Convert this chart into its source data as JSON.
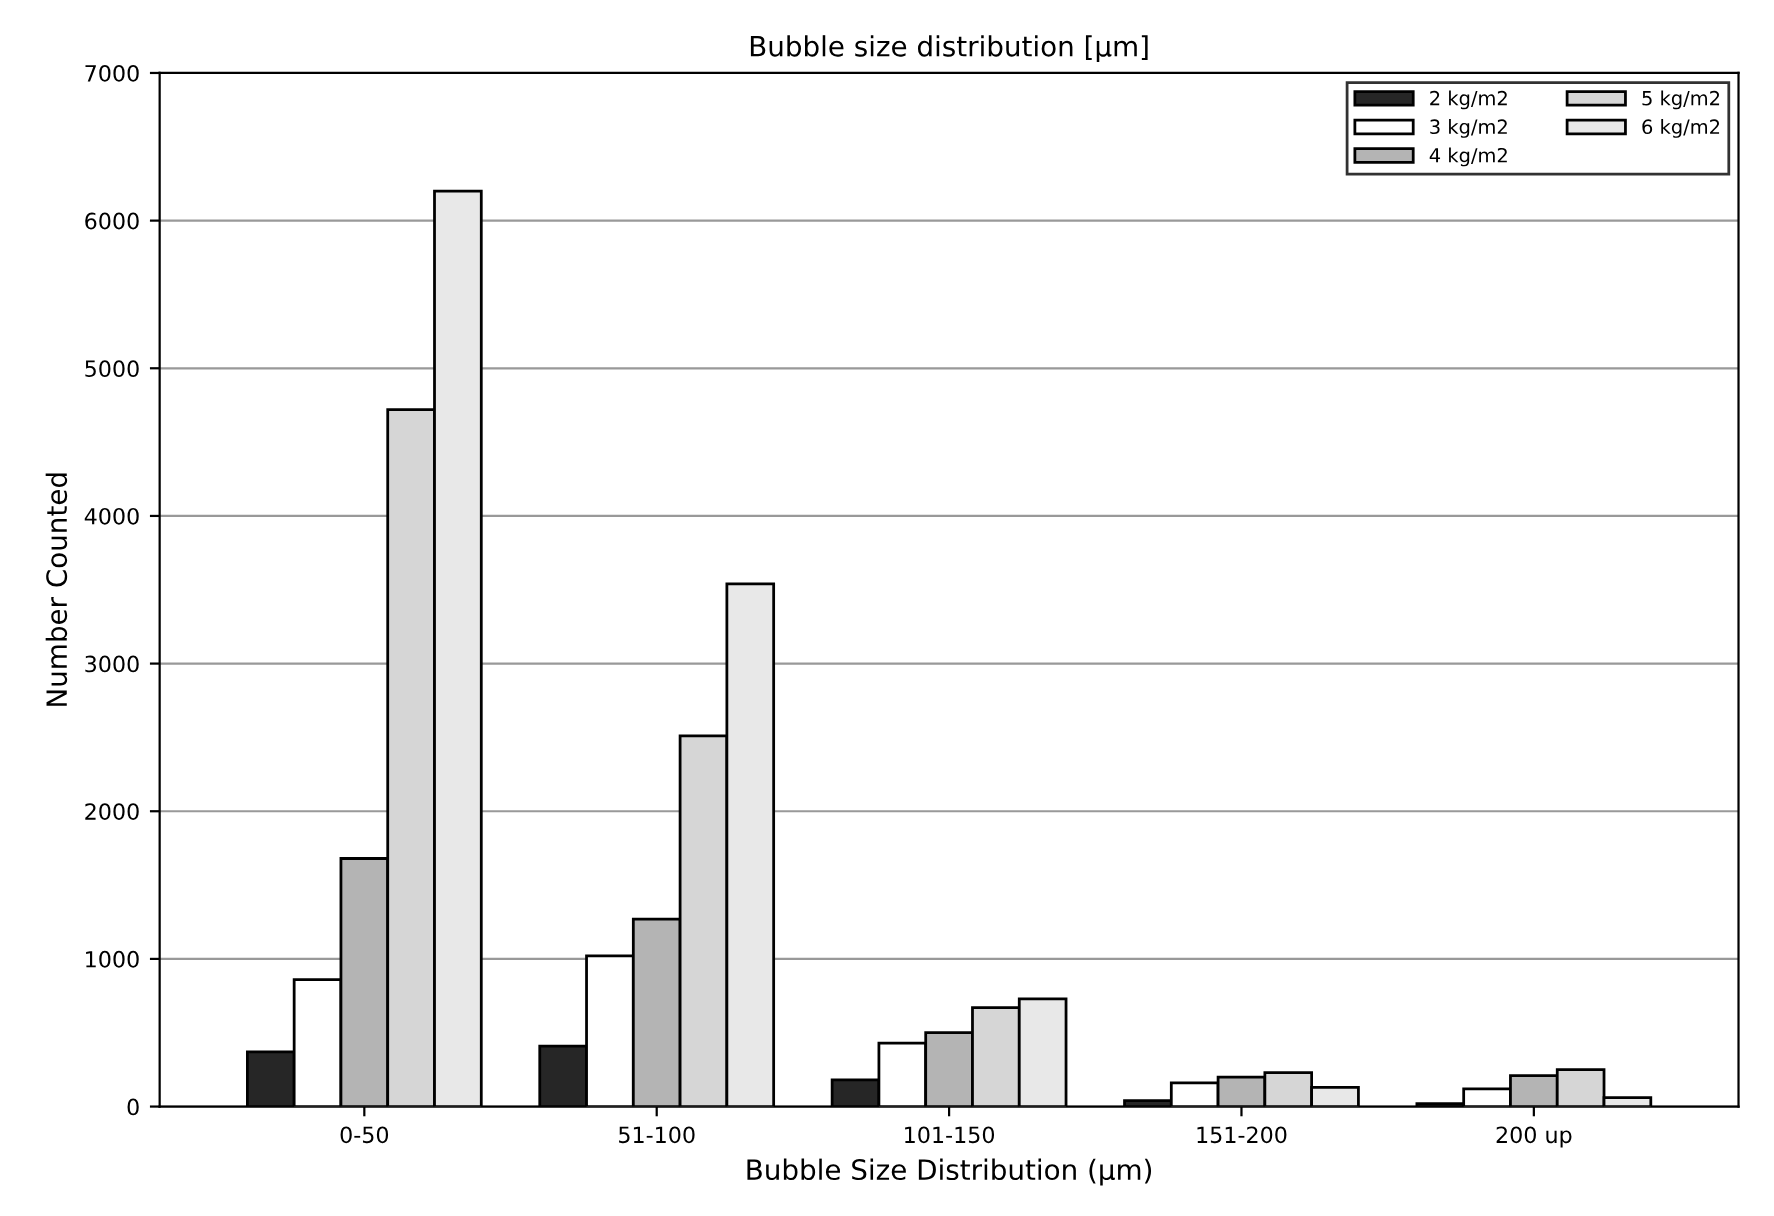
{
  "chart_data": {
    "type": "bar",
    "title": "Bubble size distribution [μm]",
    "xlabel": "Bubble Size Distribution (μm)",
    "ylabel": "Number Counted",
    "categories": [
      "0-50",
      "51-100",
      "101-150",
      "151-200",
      "200 up"
    ],
    "series": [
      {
        "name": "2 kg/m2",
        "color": "#262626",
        "values": [
          370,
          410,
          180,
          40,
          20
        ]
      },
      {
        "name": "3 kg/m2",
        "color": "#ffffff",
        "values": [
          860,
          1020,
          430,
          160,
          120
        ]
      },
      {
        "name": "4 kg/m2",
        "color": "#b4b4b4",
        "values": [
          1680,
          1270,
          500,
          200,
          210
        ]
      },
      {
        "name": "5 kg/m2",
        "color": "#d6d6d6",
        "values": [
          4720,
          2510,
          670,
          230,
          250
        ]
      },
      {
        "name": "6 kg/m2",
        "color": "#e8e8e8",
        "values": [
          6200,
          3540,
          730,
          130,
          60
        ]
      }
    ],
    "ylim": [
      0,
      7000
    ],
    "yticks": [
      0,
      1000,
      2000,
      3000,
      4000,
      5000,
      6000,
      7000
    ],
    "grid": "y",
    "legend": "top right"
  }
}
